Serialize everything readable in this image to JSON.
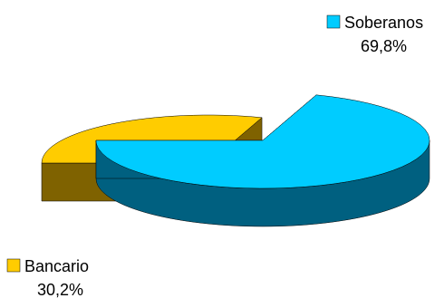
{
  "chart_data": {
    "type": "pie",
    "style": "3d-exploded",
    "title": "",
    "slices": [
      {
        "label": "Soberanos",
        "value": 69.8,
        "value_label": "69,8%",
        "color": "#00CCFF",
        "side_color": "#006080"
      },
      {
        "label": "Bancario",
        "value": 30.2,
        "value_label": "30,2%",
        "color": "#FFCC00",
        "side_color": "#7F6200"
      }
    ],
    "legend": "labels-with-swatches"
  }
}
